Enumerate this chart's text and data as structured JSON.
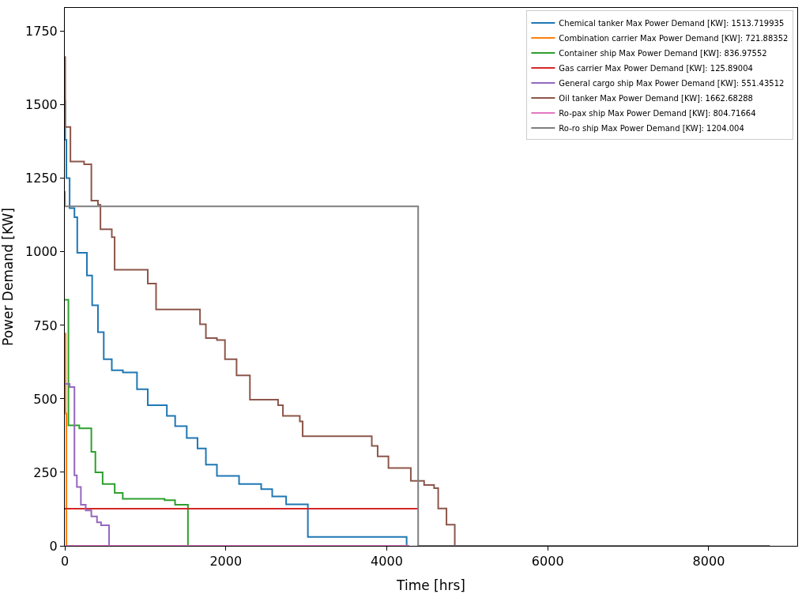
{
  "chart_data": {
    "type": "step",
    "xlabel": "Time [hrs]",
    "ylabel": "Power Demand [KW]",
    "xlim": [
      0,
      9100
    ],
    "xticks": [
      0,
      2000,
      4000,
      6000,
      8000
    ],
    "ylim": [
      0,
      1830
    ],
    "yticks": [
      0,
      250,
      500,
      750,
      1000,
      1250,
      1500,
      1750
    ],
    "legend": "top right",
    "marker": "none",
    "line_style": "solid",
    "series": [
      {
        "name": "Chemical tanker Max Power Demand [KW]: 1513.719935",
        "color": "#1f77b4",
        "x": [
          0,
          5,
          20,
          60,
          120,
          155,
          275,
          340,
          412,
          484,
          584,
          722,
          897,
          1031,
          1268,
          1371,
          1515,
          1649,
          1753,
          1890,
          2165,
          2440,
          2577,
          2750,
          3020,
          4247
        ],
        "values": [
          1514,
          1381,
          1251,
          1149,
          1118,
          997,
          920,
          818,
          727,
          635,
          597,
          590,
          533,
          478,
          442,
          407,
          367,
          331,
          276,
          238,
          210,
          193,
          168,
          141,
          30,
          0
        ]
      },
      {
        "name": "Combination carrier Max Power Demand [KW]: 721.88352",
        "color": "#ff7f0e",
        "x": [
          0,
          10,
          20
        ],
        "values": [
          722,
          450,
          0
        ]
      },
      {
        "name": "Container ship Max Power Demand [KW]: 836.97552",
        "color": "#2ca02c",
        "x": [
          0,
          45,
          180,
          330,
          380,
          470,
          620,
          720,
          1240,
          1370,
          1530
        ],
        "values": [
          837,
          410,
          400,
          320,
          250,
          210,
          180,
          160,
          155,
          140,
          0
        ]
      },
      {
        "name": "Gas carrier Max Power Demand [KW]: 125.89004",
        "color": "#d62728",
        "x": [
          0,
          4390
        ],
        "values": [
          126,
          126
        ]
      },
      {
        "name": "General cargo ship Max Power Demand [KW]: 551.43512",
        "color": "#9467bd",
        "x": [
          0,
          60,
          120,
          150,
          200,
          260,
          330,
          400,
          450,
          550
        ],
        "values": [
          551,
          540,
          240,
          200,
          140,
          120,
          100,
          80,
          70,
          0
        ]
      },
      {
        "name": "Oil tanker Max Power Demand [KW]: 1662.68288",
        "color": "#8c564b",
        "x": [
          0,
          5,
          70,
          240,
          330,
          412,
          443,
          584,
          619,
          1031,
          1134,
          1680,
          1753,
          1890,
          1990,
          2134,
          2300,
          2650,
          2710,
          2920,
          2955,
          3814,
          3887,
          4021,
          4299,
          4464,
          4588,
          4639,
          4742,
          4845
        ],
        "values": [
          1663,
          1425,
          1307,
          1298,
          1174,
          1160,
          1077,
          1050,
          939,
          892,
          804,
          754,
          707,
          700,
          635,
          580,
          497,
          478,
          442,
          423,
          373,
          340,
          304,
          265,
          221,
          207,
          196,
          127,
          72,
          0
        ]
      },
      {
        "name": "Ro-pax ship Max Power Demand [KW]: 804.71664",
        "color": "#e377c2",
        "x": [
          5,
          4280
        ],
        "values": [
          0,
          0
        ]
      },
      {
        "name": "Ro-ro ship Max Power Demand [KW]: 1204.004",
        "color": "#7f7f7f",
        "x": [
          0,
          2,
          4390,
          8760
        ],
        "values": [
          1204,
          1155,
          0,
          0
        ]
      }
    ]
  }
}
